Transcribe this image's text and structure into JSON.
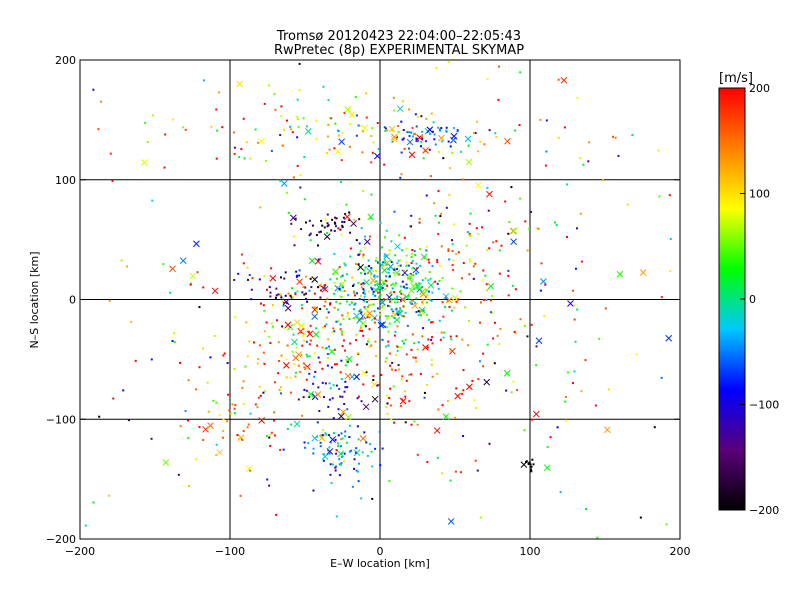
{
  "chart_data": {
    "type": "scatter",
    "title": "Tromsø 20120423 22:04:00–22:05:43",
    "subtitle": "RwPretec (8p) EXPERIMENTAL SKYMAP",
    "xlabel": "E–W location [km]",
    "ylabel": "N–S location [km]",
    "xlim": [
      -200,
      200
    ],
    "ylim": [
      -200,
      200
    ],
    "x_ticks": [
      -200,
      -100,
      0,
      100,
      200
    ],
    "y_ticks": [
      -200,
      -100,
      0,
      100,
      200
    ],
    "grid": true,
    "markers": [
      "dot",
      "cross"
    ],
    "colorbar": {
      "label": "[m/s]",
      "range": [
        -200,
        200
      ],
      "ticks": [
        200,
        100,
        0,
        -100,
        -200
      ],
      "colormap": [
        "#000000",
        "#5a007a",
        "#0000ff",
        "#00c8ff",
        "#00ff00",
        "#ffff00",
        "#ff8000",
        "#ff0000"
      ]
    },
    "clusters": [
      {
        "x": 5,
        "y": 10,
        "sx": 20,
        "sy": 22,
        "n": 330,
        "v": 0,
        "sv": 55
      },
      {
        "x": 30,
        "y": 135,
        "sx": 14,
        "sy": 6,
        "n": 55,
        "v": -70,
        "sv": 30
      },
      {
        "x": -10,
        "y": 140,
        "sx": 70,
        "sy": 14,
        "n": 120,
        "v": 90,
        "sv": 80
      },
      {
        "x": -30,
        "y": 62,
        "sx": 10,
        "sy": 5,
        "n": 40,
        "v": -170,
        "sv": 30
      },
      {
        "x": -60,
        "y": 5,
        "sx": 14,
        "sy": 10,
        "n": 45,
        "v": -150,
        "sv": 60
      },
      {
        "x": -30,
        "y": -125,
        "sx": 14,
        "sy": 14,
        "n": 80,
        "v": -50,
        "sv": 40
      },
      {
        "x": -35,
        "y": -75,
        "sx": 12,
        "sy": 14,
        "n": 40,
        "v": -110,
        "sv": 40
      },
      {
        "x": -100,
        "y": -105,
        "sx": 20,
        "sy": 18,
        "n": 50,
        "v": 130,
        "sv": 60
      },
      {
        "x": 98,
        "y": -137,
        "sx": 3,
        "sy": 3,
        "n": 12,
        "v": -200,
        "sv": 5
      },
      {
        "x": -40,
        "y": -30,
        "sx": 30,
        "sy": 30,
        "n": 150,
        "v": 120,
        "sv": 80
      },
      {
        "x": 20,
        "y": -60,
        "sx": 40,
        "sy": 30,
        "n": 100,
        "v": 160,
        "sv": 60
      },
      {
        "x": 50,
        "y": 20,
        "sx": 40,
        "sy": 40,
        "n": 120,
        "v": 150,
        "sv": 80
      },
      {
        "x": 0,
        "y": 0,
        "sx": 110,
        "sy": 110,
        "n": 420,
        "v": 50,
        "sv": 150
      }
    ]
  }
}
